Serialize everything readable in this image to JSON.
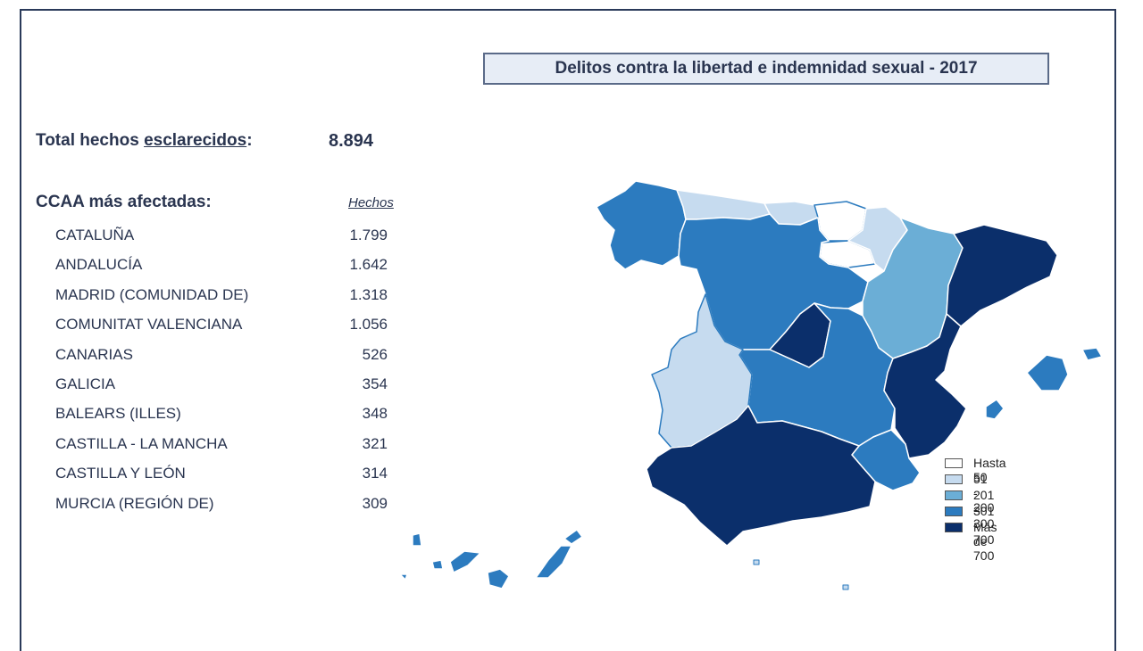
{
  "title": "Delitos contra la libertad e indemnidad sexual - 2017",
  "total": {
    "label_prefix": "Total hechos ",
    "label_underlined": "esclarecidos",
    "label_suffix": ":",
    "value": "8.894"
  },
  "ccaa": {
    "label": "CCAA más afectadas:",
    "column_header": "Hechos",
    "rows": [
      {
        "name": "CATALUÑA",
        "value": "1.799"
      },
      {
        "name": "ANDALUCÍA",
        "value": "1.642"
      },
      {
        "name": "MADRID (COMUNIDAD DE)",
        "value": "1.318"
      },
      {
        "name": "COMUNITAT VALENCIANA",
        "value": "1.056"
      },
      {
        "name": "CANARIAS",
        "value": "526"
      },
      {
        "name": "GALICIA",
        "value": "354"
      },
      {
        "name": "BALEARS (ILLES)",
        "value": "348"
      },
      {
        "name": "CASTILLA - LA MANCHA",
        "value": "321"
      },
      {
        "name": "CASTILLA Y LEÓN",
        "value": "314"
      },
      {
        "name": "MURCIA (REGIÓN DE)",
        "value": "309"
      }
    ]
  },
  "legend": [
    {
      "label": "Hasta 50",
      "color": "#ffffff"
    },
    {
      "label": "51 - 200",
      "color": "#c6dbef"
    },
    {
      "label": "201 - 300",
      "color": "#6baed6"
    },
    {
      "label": "301 - 700",
      "color": "#2c7bbf"
    },
    {
      "label": "Más de 700",
      "color": "#0b2f6b"
    }
  ]
}
